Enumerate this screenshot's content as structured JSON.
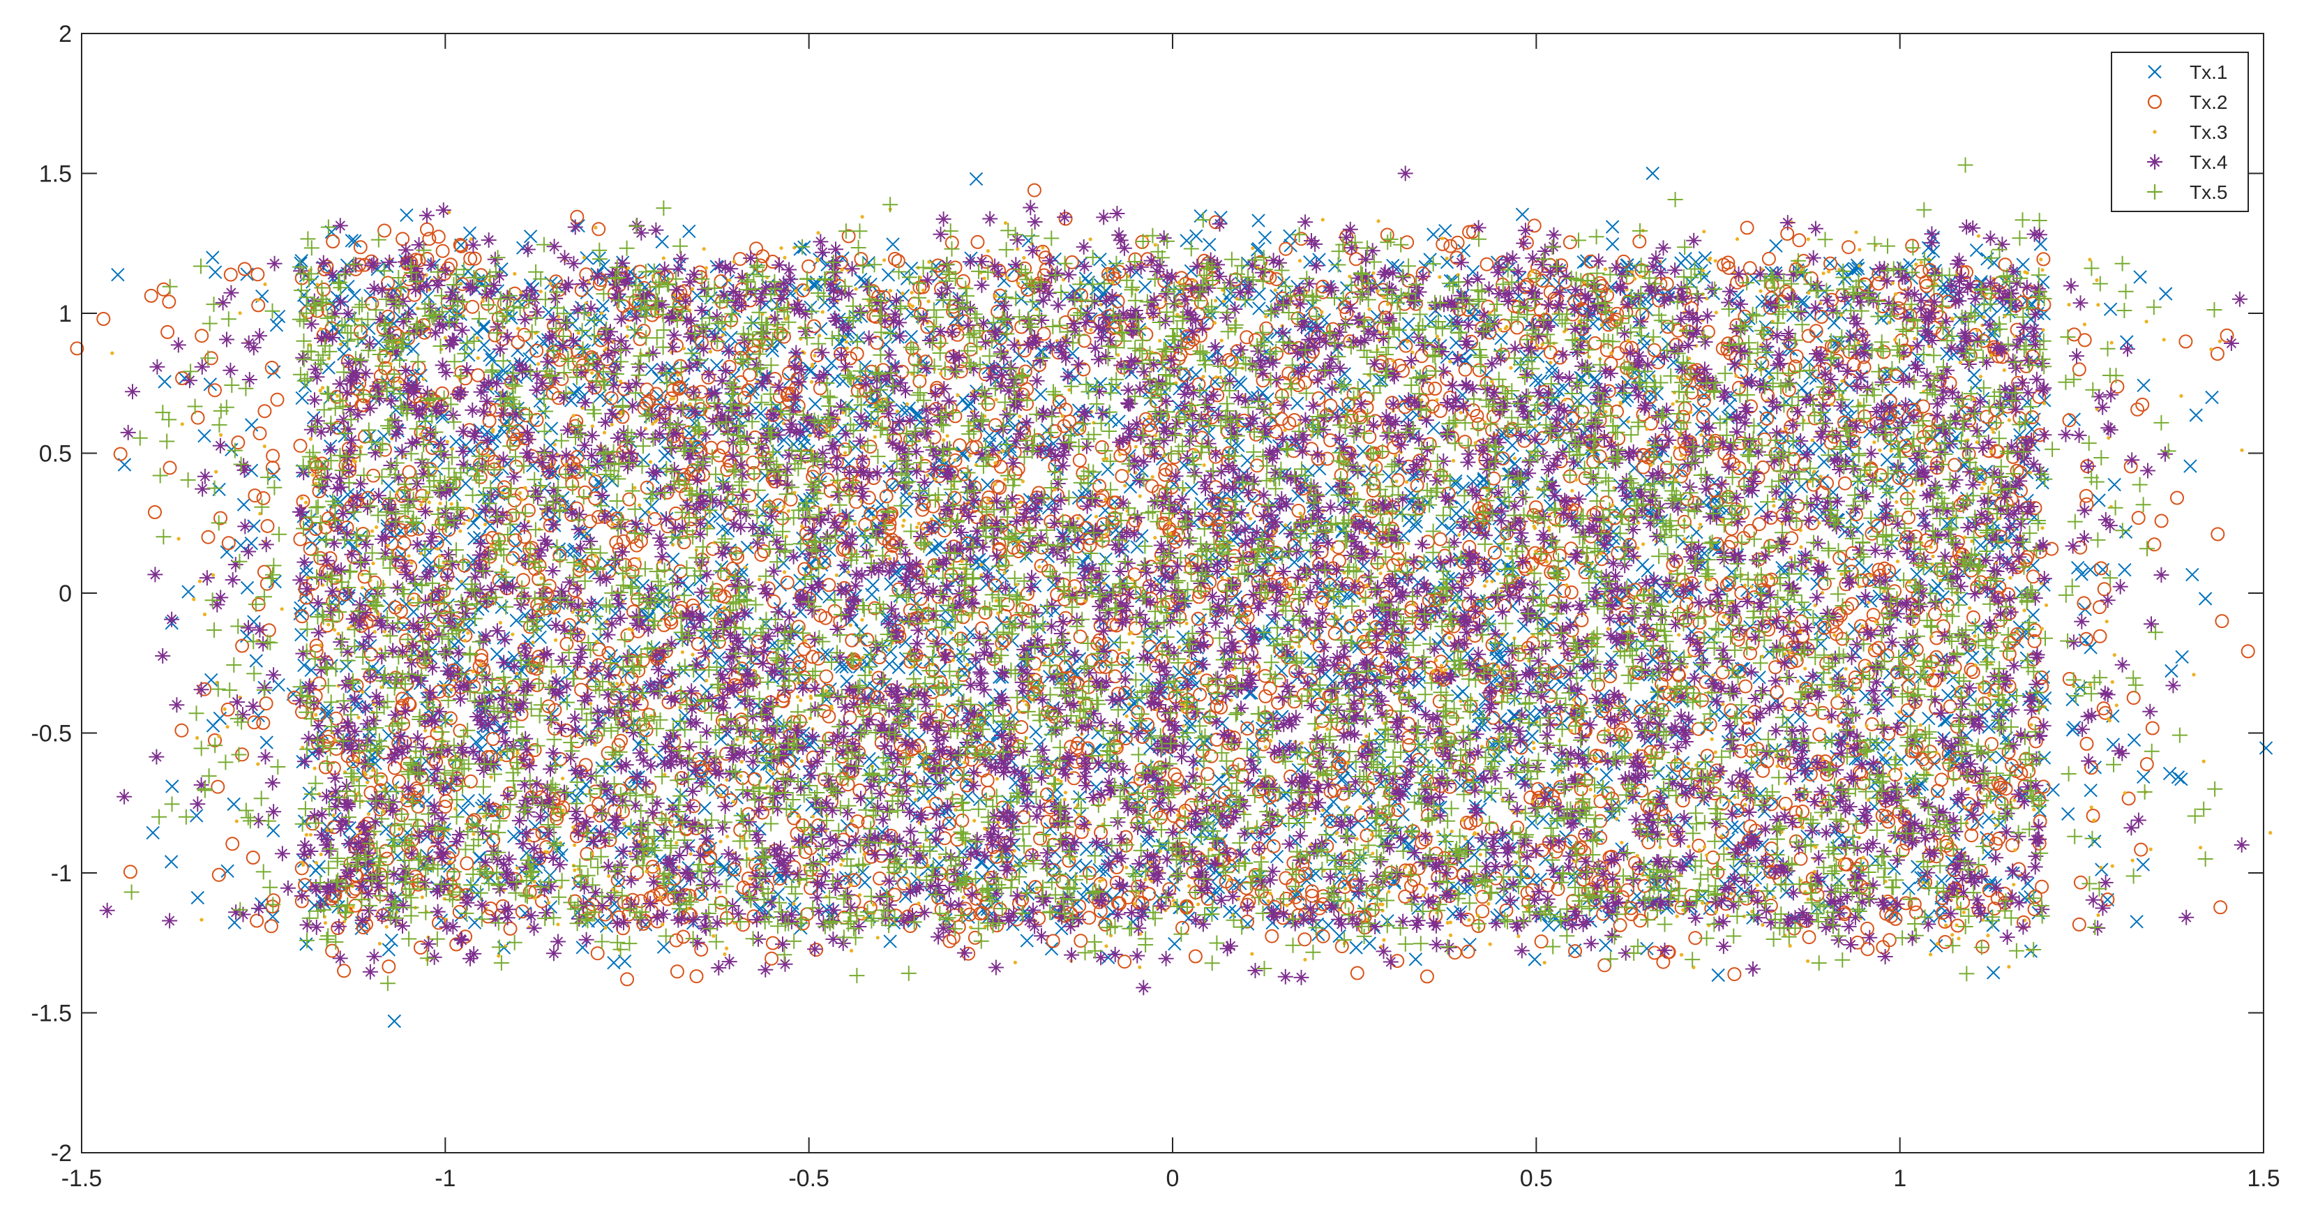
{
  "chart_data": {
    "type": "scatter",
    "title": "",
    "xlabel": "",
    "ylabel": "",
    "xlim": [
      -1.5,
      1.5
    ],
    "ylim": [
      -2,
      2
    ],
    "xticks": [
      -1.5,
      -1,
      -0.5,
      0,
      0.5,
      1,
      1.5
    ],
    "yticks": [
      -2,
      -1.5,
      -1,
      -0.5,
      0,
      0.5,
      1,
      1.5,
      2
    ],
    "xtick_labels": [
      "-1.5",
      "-1",
      "-0.5",
      "0",
      "0.5",
      "1",
      "1.5"
    ],
    "ytick_labels": [
      "-2",
      "-1.5",
      "-1",
      "-0.5",
      "0",
      "0.5",
      "1",
      "1.5",
      "2"
    ],
    "grid": false,
    "box": true,
    "legend_position": "top-right",
    "constellation": {
      "i_levels": [
        -1.05,
        -0.6,
        -0.3,
        0.0,
        0.3,
        0.6,
        1.05
      ],
      "q_levels": [
        -1.0,
        -0.6,
        -0.3,
        0.0,
        0.3,
        0.6,
        1.0
      ],
      "core_extent": {
        "x": [
          -1.2,
          1.2
        ],
        "y": [
          -1.2,
          1.2
        ]
      },
      "outlier_extent": {
        "x": [
          -1.45,
          1.47
        ],
        "y": [
          -1.53,
          1.5
        ]
      }
    },
    "series": [
      {
        "name": "Tx.1",
        "marker": "x",
        "color": "#0072bd"
      },
      {
        "name": "Tx.2",
        "marker": "o",
        "color": "#d95319"
      },
      {
        "name": "Tx.3",
        "marker": ".",
        "color": "#edb120"
      },
      {
        "name": "Tx.4",
        "marker": "*",
        "color": "#7e2f8e"
      },
      {
        "name": "Tx.5",
        "marker": "+",
        "color": "#77ac30"
      }
    ]
  }
}
